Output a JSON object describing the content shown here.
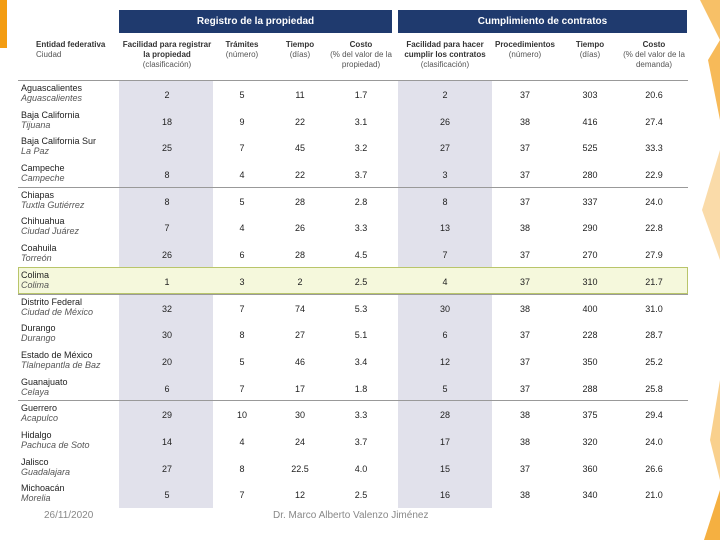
{
  "sections": {
    "registro": "Registro de la propiedad",
    "cumplimiento": "Cumplimiento de contratos"
  },
  "headers": [
    {
      "h": "Entidad federativa",
      "s": "Ciudad"
    },
    {
      "h": "Facilidad para registrar la propiedad",
      "s": "(clasificación)"
    },
    {
      "h": "Trámites",
      "s": "(número)"
    },
    {
      "h": "Tiempo",
      "s": "(días)"
    },
    {
      "h": "Costo",
      "s": "(% del valor de la propiedad)"
    },
    {
      "h": "Facilidad para hacer cumplir los contratos",
      "s": "(clasificación)"
    },
    {
      "h": "Procedimientos",
      "s": "(número)"
    },
    {
      "h": "Tiempo",
      "s": "(días)"
    },
    {
      "h": "Costo",
      "s": "(% del valor de la demanda)"
    }
  ],
  "rows": [
    {
      "state": "Aguascalientes",
      "city": "Aguascalientes",
      "v": [
        "2",
        "5",
        "11",
        "1.7",
        "2",
        "37",
        "303",
        "20.6"
      ]
    },
    {
      "state": "Baja California",
      "city": "Tijuana",
      "v": [
        "18",
        "9",
        "22",
        "3.1",
        "26",
        "38",
        "416",
        "27.4"
      ]
    },
    {
      "state": "Baja California Sur",
      "city": "La Paz",
      "v": [
        "25",
        "7",
        "45",
        "3.2",
        "27",
        "37",
        "525",
        "33.3"
      ]
    },
    {
      "state": "Campeche",
      "city": "Campeche",
      "v": [
        "8",
        "4",
        "22",
        "3.7",
        "3",
        "37",
        "280",
        "22.9"
      ]
    },
    {
      "state": "Chiapas",
      "city": "Tuxtla Gutiérrez",
      "v": [
        "8",
        "5",
        "28",
        "2.8",
        "8",
        "37",
        "337",
        "24.0"
      ]
    },
    {
      "state": "Chihuahua",
      "city": "Ciudad Juárez",
      "v": [
        "7",
        "4",
        "26",
        "3.3",
        "13",
        "38",
        "290",
        "22.8"
      ]
    },
    {
      "state": "Coahuila",
      "city": "Torreón",
      "v": [
        "26",
        "6",
        "28",
        "4.5",
        "7",
        "37",
        "270",
        "27.9"
      ]
    },
    {
      "state": "Colima",
      "city": "Colima",
      "v": [
        "1",
        "3",
        "2",
        "2.5",
        "4",
        "37",
        "310",
        "21.7"
      ]
    },
    {
      "state": "Distrito Federal",
      "city": "Ciudad de México",
      "v": [
        "32",
        "7",
        "74",
        "5.3",
        "30",
        "38",
        "400",
        "31.0"
      ]
    },
    {
      "state": "Durango",
      "city": "Durango",
      "v": [
        "30",
        "8",
        "27",
        "5.1",
        "6",
        "37",
        "228",
        "28.7"
      ]
    },
    {
      "state": "Estado de México",
      "city": "Tlalnepantla de Baz",
      "v": [
        "20",
        "5",
        "46",
        "3.4",
        "12",
        "37",
        "350",
        "25.2"
      ]
    },
    {
      "state": "Guanajuato",
      "city": "Celaya",
      "v": [
        "6",
        "7",
        "17",
        "1.8",
        "5",
        "37",
        "288",
        "25.8"
      ]
    },
    {
      "state": "Guerrero",
      "city": "Acapulco",
      "v": [
        "29",
        "10",
        "30",
        "3.3",
        "28",
        "38",
        "375",
        "29.4"
      ]
    },
    {
      "state": "Hidalgo",
      "city": "Pachuca de Soto",
      "v": [
        "14",
        "4",
        "24",
        "3.7",
        "17",
        "38",
        "320",
        "24.0"
      ]
    },
    {
      "state": "Jalisco",
      "city": "Guadalajara",
      "v": [
        "27",
        "8",
        "22.5",
        "4.0",
        "15",
        "37",
        "360",
        "26.6"
      ]
    },
    {
      "state": "Michoacán",
      "city": "Morelia",
      "v": [
        "5",
        "7",
        "12",
        "2.5",
        "16",
        "38",
        "340",
        "21.0"
      ]
    }
  ],
  "highlight_state": "Colima",
  "footer": {
    "date": "26/11/2020",
    "author": "Dr. Marco Alberto Valenzo Jiménez"
  },
  "colors": {
    "header": "#1f3a6e",
    "shade": "#e1e1eb",
    "highlight": "#f5f8dc",
    "accent": "#f39c12"
  }
}
